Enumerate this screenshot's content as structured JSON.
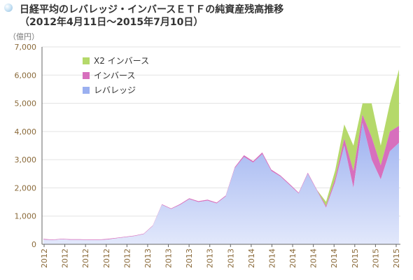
{
  "title": {
    "line1": "日経平均のレバレッジ・インバースＥＴＦの純資産残高推移",
    "line2": "（2012年4月11日〜2015年7月10日）"
  },
  "unit_label": "（億円）",
  "colors": {
    "x2_inverse": "#b5d96a",
    "inverse": "#d76fbd",
    "leverage": "#9bb0f0",
    "leverage_light": "#e2e8fb",
    "axis": "#666666",
    "grid": "#e3e3e3",
    "tick_label": "#8a6a3a"
  },
  "chart_data": {
    "type": "area",
    "stacked": true,
    "title": "日経平均のレバレッジ・インバースＥＴＦの純資産残高推移",
    "ylabel": "（億円）",
    "ylim": [
      0,
      7000
    ],
    "yticks": [
      0,
      1000,
      2000,
      3000,
      4000,
      5000,
      6000,
      7000
    ],
    "ytick_labels": [
      "0",
      "1,000",
      "2,000",
      "3,000",
      "4,000",
      "5,000",
      "6,000",
      "7,000"
    ],
    "xtick_labels": [
      "2012",
      "2012",
      "2012",
      "2012",
      "2012",
      "2013",
      "2013",
      "2013",
      "2013",
      "2013",
      "2014",
      "2014",
      "2014",
      "2014",
      "2014",
      "2015",
      "2015",
      "2015"
    ],
    "grid": "horizontal",
    "legend_position": "top-left",
    "x": [
      "2012-04",
      "2012-05",
      "2012-06",
      "2012-07",
      "2012-08",
      "2012-09",
      "2012-10",
      "2012-11",
      "2012-12",
      "2013-01",
      "2013-02",
      "2013-03",
      "2013-04",
      "2013-05",
      "2013-06",
      "2013-07",
      "2013-08",
      "2013-09",
      "2013-10",
      "2013-11",
      "2013-12",
      "2014-01",
      "2014-02",
      "2014-03",
      "2014-04",
      "2014-05",
      "2014-06",
      "2014-07",
      "2014-08",
      "2014-09",
      "2014-10",
      "2014-11",
      "2014-12",
      "2015-01",
      "2015-02",
      "2015-03",
      "2015-04",
      "2015-05",
      "2015-06",
      "2015-07"
    ],
    "series": [
      {
        "name": "レバレッジ",
        "values": [
          170,
          150,
          175,
          160,
          160,
          150,
          150,
          170,
          210,
          250,
          290,
          360,
          650,
          1400,
          1250,
          1400,
          1600,
          1500,
          1550,
          1450,
          1700,
          2700,
          3100,
          2900,
          3200,
          2600,
          2400,
          2100,
          1800,
          2500,
          1900,
          1300,
          2200,
          3500,
          2000,
          4300,
          3000,
          2300,
          3300,
          3600
        ]
      },
      {
        "name": "インバース",
        "values": [
          20,
          20,
          20,
          20,
          20,
          20,
          20,
          20,
          20,
          20,
          20,
          20,
          20,
          20,
          20,
          30,
          30,
          30,
          30,
          30,
          30,
          40,
          60,
          50,
          60,
          50,
          40,
          40,
          30,
          40,
          30,
          60,
          120,
          250,
          600,
          300,
          800,
          500,
          700,
          600
        ]
      },
      {
        "name": "X2 インバース",
        "values": [
          0,
          0,
          0,
          0,
          0,
          0,
          0,
          0,
          0,
          0,
          0,
          0,
          0,
          0,
          0,
          0,
          0,
          0,
          0,
          0,
          0,
          0,
          0,
          0,
          0,
          0,
          0,
          0,
          0,
          0,
          0,
          150,
          300,
          500,
          900,
          400,
          1200,
          700,
          1000,
          2000
        ]
      }
    ]
  },
  "legend": [
    {
      "label": "X2 インバース",
      "color": "#b5d96a"
    },
    {
      "label": "インバース",
      "color": "#d76fbd"
    },
    {
      "label": "レバレッジ",
      "color": "#9bb0f0"
    }
  ]
}
